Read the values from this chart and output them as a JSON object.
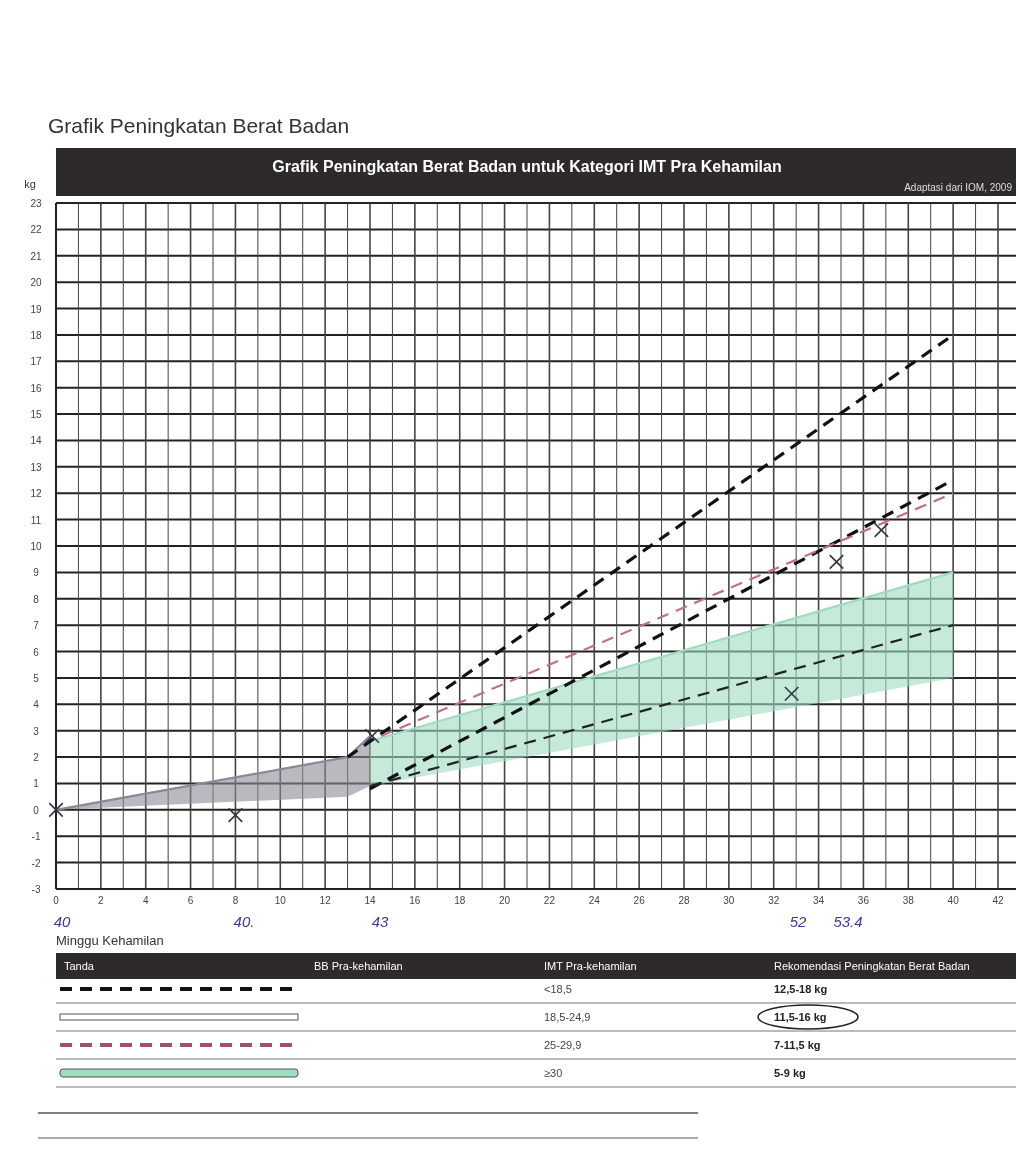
{
  "chart_data": {
    "type": "line",
    "title": "Grafik Peningkatan Berat Badan",
    "subtitle": "Grafik Peningkatan Berat Badan untuk Kategori IMT Pra Kehamilan",
    "xlabel": "Minggu Kehamilan",
    "ylabel": "kg",
    "xlim": [
      0,
      42
    ],
    "ylim": [
      -3,
      23
    ],
    "xticks": [
      0,
      {
        "value": 1,
        "label": null
      },
      2,
      {
        "value": 3,
        "label": null
      },
      4,
      {
        "value": 5,
        "label": null
      },
      6,
      {
        "value": 7,
        "label": null
      },
      8,
      {
        "value": 9,
        "label": null
      },
      10,
      {
        "value": 11,
        "label": null
      },
      12,
      {
        "value": 13,
        "label": null
      },
      14,
      {
        "value": 15,
        "label": null
      },
      16,
      {
        "value": 17,
        "label": null
      },
      18,
      {
        "value": 19,
        "label": null
      },
      20,
      {
        "value": 21,
        "label": null
      },
      22,
      {
        "value": 23,
        "label": null
      },
      24,
      {
        "value": 25,
        "label": null
      },
      26,
      {
        "value": 27,
        "label": null
      },
      28,
      {
        "value": 29,
        "label": null
      },
      30,
      {
        "value": 31,
        "label": null
      },
      32,
      {
        "value": 33,
        "label": null
      },
      34,
      {
        "value": 35,
        "label": null
      },
      36,
      {
        "value": 37,
        "label": null
      },
      38,
      {
        "value": 39,
        "label": null
      },
      40,
      {
        "value": 41,
        "label": null
      },
      42
    ],
    "yticks": [
      -3,
      -2,
      -1,
      0,
      1,
      2,
      3,
      4,
      5,
      6,
      7,
      8,
      9,
      10,
      11,
      12,
      13,
      14,
      15,
      16,
      17,
      18,
      19,
      20,
      21,
      22,
      23
    ],
    "grid": true,
    "series": [
      {
        "color": "#8a8a96",
        "x": [
          0,
          13,
          14
        ],
        "values": [
          0,
          2,
          2.8
        ],
        "lower": [
          0,
          0.5,
          0.9
        ],
        "upper": [
          0,
          2,
          2.8
        ]
      },
      {
        "color": "#9fdcc0",
        "x": [
          14,
          40
        ],
        "values": [
          2.6,
          9
        ],
        "lower": [
          0.9,
          5
        ],
        "upper": [
          2.6,
          9
        ]
      },
      {
        "color": "#111111",
        "line_style": "dashed",
        "x": [
          13,
          40
        ],
        "values": [
          2,
          18
        ]
      },
      {
        "color": "#111111",
        "line_style": "dashed",
        "x": [
          14,
          40
        ],
        "values": [
          0.8,
          12.5
        ]
      },
      {
        "color": "#c0708e",
        "line_style": "dashed",
        "x": [
          14.5,
          40
        ],
        "values": [
          2.8,
          12
        ]
      },
      {
        "color": "#222222",
        "line_style": "dashed",
        "x": [
          14,
          40
        ],
        "values": [
          0.9,
          7
        ]
      },
      {
        "type": "scatter",
        "color": "#333344",
        "marker": "cross",
        "x": [
          0,
          8,
          14.1,
          32.8,
          34.8,
          36.8
        ],
        "values": [
          0,
          -0.2,
          2.8,
          4.4,
          9.4,
          10.6
        ]
      }
    ],
    "annotations": [
      "Adaptasi dari IOM, 2009",
      "Tanda",
      "BB Pra-kehamilan",
      "IMT Pra-kehamilan",
      "Rekomendasi Peningkatan Berat Badan",
      "<18,5",
      "18,5-24,9",
      "25-29,9",
      "≥30",
      "12,5-18 kg",
      "11,5-16 kg",
      "7-11,5 kg",
      "5-9 kg",
      "40",
      "40.",
      "43",
      "52",
      "53.4"
    ]
  }
}
